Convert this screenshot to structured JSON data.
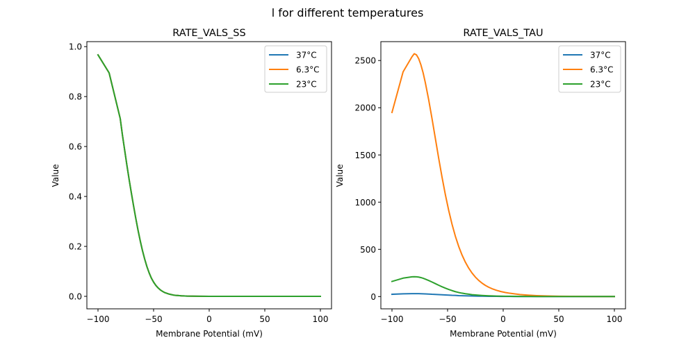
{
  "figure": {
    "suptitle": "l for different temperatures"
  },
  "chart_data": [
    {
      "type": "line",
      "title": "RATE_VALS_SS",
      "xlabel": "Membrane Potential (mV)",
      "ylabel": "Value",
      "xlim": [
        -110,
        110
      ],
      "ylim": [
        -0.05,
        1.02
      ],
      "xticks": [
        -100,
        -50,
        0,
        50,
        100
      ],
      "xtick_labels": [
        "−100",
        "−50",
        "0",
        "50",
        "100"
      ],
      "yticks": [
        0.0,
        0.2,
        0.4,
        0.6,
        0.8,
        1.0
      ],
      "ytick_labels": [
        "0.0",
        "0.2",
        "0.4",
        "0.6",
        "0.8",
        "1.0"
      ],
      "grid": false,
      "legend_position": "top-right",
      "x": [
        -100,
        -90,
        -80,
        -78,
        -76,
        -74,
        -72,
        -70,
        -68,
        -66,
        -64,
        -62,
        -60,
        -58,
        -56,
        -54,
        -52,
        -50,
        -48,
        -46,
        -44,
        -42,
        -40,
        -38,
        -36,
        -34,
        -32,
        -30,
        -25,
        -20,
        -10,
        0,
        25,
        50,
        75,
        100
      ],
      "series": [
        {
          "name": "37°C",
          "color": "#1f77b4",
          "values": [
            0.967,
            0.895,
            0.712,
            0.645,
            0.585,
            0.525,
            0.468,
            0.414,
            0.362,
            0.312,
            0.265,
            0.222,
            0.183,
            0.149,
            0.119,
            0.094,
            0.073,
            0.057,
            0.044,
            0.034,
            0.026,
            0.02,
            0.015,
            0.012,
            0.009,
            0.007,
            0.005,
            0.004,
            0.002,
            0.001,
            0.0003,
            0.0001,
            0.0,
            0.0,
            0.0,
            0.0
          ]
        },
        {
          "name": "6.3°C",
          "color": "#ff7f0e",
          "values": [
            0.967,
            0.895,
            0.712,
            0.645,
            0.585,
            0.525,
            0.468,
            0.414,
            0.362,
            0.312,
            0.265,
            0.222,
            0.183,
            0.149,
            0.119,
            0.094,
            0.073,
            0.057,
            0.044,
            0.034,
            0.026,
            0.02,
            0.015,
            0.012,
            0.009,
            0.007,
            0.005,
            0.004,
            0.002,
            0.001,
            0.0003,
            0.0001,
            0.0,
            0.0,
            0.0,
            0.0
          ]
        },
        {
          "name": "23°C",
          "color": "#2ca02c",
          "values": [
            0.967,
            0.895,
            0.712,
            0.645,
            0.585,
            0.525,
            0.468,
            0.414,
            0.362,
            0.312,
            0.265,
            0.222,
            0.183,
            0.149,
            0.119,
            0.094,
            0.073,
            0.057,
            0.044,
            0.034,
            0.026,
            0.02,
            0.015,
            0.012,
            0.009,
            0.007,
            0.005,
            0.004,
            0.002,
            0.001,
            0.0003,
            0.0001,
            0.0,
            0.0,
            0.0,
            0.0
          ]
        }
      ]
    },
    {
      "type": "line",
      "title": "RATE_VALS_TAU",
      "xlabel": "Membrane Potential (mV)",
      "ylabel": "Value",
      "xlim": [
        -110,
        110
      ],
      "ylim": [
        -130,
        2700
      ],
      "xticks": [
        -100,
        -50,
        0,
        50,
        100
      ],
      "xtick_labels": [
        "−100",
        "−50",
        "0",
        "50",
        "100"
      ],
      "yticks": [
        0,
        500,
        1000,
        1500,
        2000,
        2500
      ],
      "ytick_labels": [
        "0",
        "500",
        "1000",
        "1500",
        "2000",
        "2500"
      ],
      "grid": false,
      "legend_position": "top-right",
      "x": [
        -100,
        -90,
        -82,
        -80,
        -78,
        -76,
        -74,
        -72,
        -70,
        -67,
        -64,
        -61,
        -58,
        -55,
        -52,
        -49,
        -46,
        -43,
        -40,
        -37,
        -34,
        -31,
        -28,
        -25,
        -22,
        -19,
        -16,
        -13,
        -10,
        -6,
        -2,
        2,
        6,
        10,
        15,
        20,
        25,
        30,
        35,
        40,
        50,
        60,
        70,
        80,
        90,
        100
      ],
      "series": [
        {
          "name": "37°C",
          "color": "#1f77b4",
          "values": [
            24,
            29,
            31,
            31,
            31,
            31,
            30,
            29,
            28,
            26,
            24,
            23,
            21,
            19,
            17,
            15,
            13,
            12,
            10,
            9,
            8,
            7,
            6,
            5,
            4.4,
            3.8,
            3.2,
            2.7,
            2.3,
            1.9,
            1.5,
            1.2,
            1.0,
            0.8,
            0.6,
            0.4,
            0.3,
            0.2,
            0.15,
            0.1,
            0.05,
            0.02,
            0.01,
            0.0,
            0.0,
            0.0
          ]
        },
        {
          "name": "6.3°C",
          "color": "#ff7f0e",
          "values": [
            1950,
            2380,
            2540,
            2572,
            2560,
            2520,
            2455,
            2370,
            2265,
            2085,
            1885,
            1675,
            1465,
            1265,
            1080,
            913,
            766,
            639,
            531,
            440,
            364,
            301,
            249,
            206,
            171,
            142,
            118,
            99,
            83,
            66,
            53,
            43,
            35,
            29,
            22,
            17,
            13,
            10,
            8,
            6,
            3.5,
            2,
            1.2,
            0.7,
            0.4,
            0.25
          ]
        },
        {
          "name": "23°C",
          "color": "#2ca02c",
          "values": [
            160,
            195,
            209,
            210,
            209,
            206,
            201,
            194,
            185,
            170,
            154,
            137,
            120,
            104,
            89,
            75,
            63,
            52,
            43,
            36,
            30,
            25,
            20,
            17,
            14,
            11.5,
            9.5,
            8,
            6.7,
            5.3,
            4.3,
            3.5,
            2.8,
            2.3,
            1.8,
            1.4,
            1.0,
            0.8,
            0.6,
            0.5,
            0.3,
            0.15,
            0.1,
            0.05,
            0.03,
            0.02
          ]
        }
      ]
    }
  ]
}
